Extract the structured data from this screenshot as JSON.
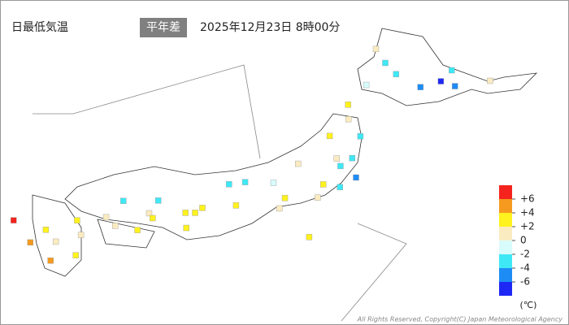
{
  "header": {
    "title": "日最低気温",
    "mode": "平年差",
    "datetime": "2025年12月23日 8時00分"
  },
  "legend": {
    "unit": "(℃)",
    "ticks": [
      {
        "value": 6,
        "label": "+6"
      },
      {
        "value": 4,
        "label": "+4"
      },
      {
        "value": 2,
        "label": "+2"
      },
      0,
      -2,
      -4,
      -6
    ],
    "colors": [
      "#f5231e",
      "#f59a1e",
      "#fff21e",
      "#fbebc0",
      "#d8fcfc",
      "#3fe8f5",
      "#1e8cf5",
      "#1e28f5"
    ]
  },
  "stations": [
    {
      "lon": 141.35,
      "lat": 43.06,
      "value": -1.5
    },
    {
      "lon": 142.37,
      "lat": 43.77,
      "value": -3.2
    },
    {
      "lon": 144.38,
      "lat": 42.98,
      "value": -4.5
    },
    {
      "lon": 145.58,
      "lat": 43.33,
      "value": 0.5
    },
    {
      "lon": 143.2,
      "lat": 42.92,
      "value": -5.1
    },
    {
      "lon": 141.68,
      "lat": 45.41,
      "value": 0.8
    },
    {
      "lon": 144.27,
      "lat": 44.02,
      "value": -3.6
    },
    {
      "lon": 140.73,
      "lat": 41.77,
      "value": 2.5
    },
    {
      "lon": 142.0,
      "lat": 44.5,
      "value": -2.5
    },
    {
      "lon": 143.9,
      "lat": 43.3,
      "value": -6.4
    },
    {
      "lon": 140.74,
      "lat": 40.82,
      "value": 1.2
    },
    {
      "lon": 141.15,
      "lat": 39.7,
      "value": -2.3
    },
    {
      "lon": 140.87,
      "lat": 38.27,
      "value": -3.1
    },
    {
      "lon": 140.1,
      "lat": 39.72,
      "value": 2.2
    },
    {
      "lon": 140.34,
      "lat": 38.25,
      "value": 0.5
    },
    {
      "lon": 140.47,
      "lat": 37.75,
      "value": -2.8
    },
    {
      "lon": 141.0,
      "lat": 37.0,
      "value": -4.2
    },
    {
      "lon": 139.02,
      "lat": 37.9,
      "value": 1.5
    },
    {
      "lon": 140.45,
      "lat": 36.37,
      "value": -2.6
    },
    {
      "lon": 139.88,
      "lat": 36.55,
      "value": 2.4
    },
    {
      "lon": 139.69,
      "lat": 35.69,
      "value": 0.9
    },
    {
      "lon": 138.18,
      "lat": 36.65,
      "value": -0.6
    },
    {
      "lon": 138.57,
      "lat": 35.66,
      "value": 2.8
    },
    {
      "lon": 137.21,
      "lat": 36.7,
      "value": -2.2
    },
    {
      "lon": 136.66,
      "lat": 36.56,
      "value": -2.1
    },
    {
      "lon": 136.9,
      "lat": 35.17,
      "value": 3.1
    },
    {
      "lon": 138.38,
      "lat": 34.98,
      "value": 1.9
    },
    {
      "lon": 135.75,
      "lat": 35.01,
      "value": 2.3
    },
    {
      "lon": 135.5,
      "lat": 34.69,
      "value": 3.0
    },
    {
      "lon": 135.17,
      "lat": 34.69,
      "value": 2.6
    },
    {
      "lon": 134.24,
      "lat": 35.49,
      "value": -2.4
    },
    {
      "lon": 133.05,
      "lat": 35.47,
      "value": -3.0
    },
    {
      "lon": 133.93,
      "lat": 34.66,
      "value": 1.0
    },
    {
      "lon": 132.46,
      "lat": 34.4,
      "value": 0.4
    },
    {
      "lon": 131.47,
      "lat": 34.19,
      "value": 2.3
    },
    {
      "lon": 134.05,
      "lat": 34.34,
      "value": 2.5
    },
    {
      "lon": 133.53,
      "lat": 33.56,
      "value": 2.1
    },
    {
      "lon": 132.77,
      "lat": 33.84,
      "value": 1.3
    },
    {
      "lon": 130.4,
      "lat": 33.58,
      "value": 2.2
    },
    {
      "lon": 129.87,
      "lat": 32.75,
      "value": 4.5
    },
    {
      "lon": 130.74,
      "lat": 32.8,
      "value": 1.1
    },
    {
      "lon": 131.6,
      "lat": 33.24,
      "value": 0.6
    },
    {
      "lon": 131.42,
      "lat": 31.91,
      "value": 2.4
    },
    {
      "lon": 130.56,
      "lat": 31.56,
      "value": 4.2
    },
    {
      "lon": 129.3,
      "lat": 34.2,
      "value": 6.3
    },
    {
      "lon": 135.2,
      "lat": 33.7,
      "value": 2.2
    },
    {
      "lon": 139.4,
      "lat": 33.1,
      "value": 2.4
    }
  ]
}
